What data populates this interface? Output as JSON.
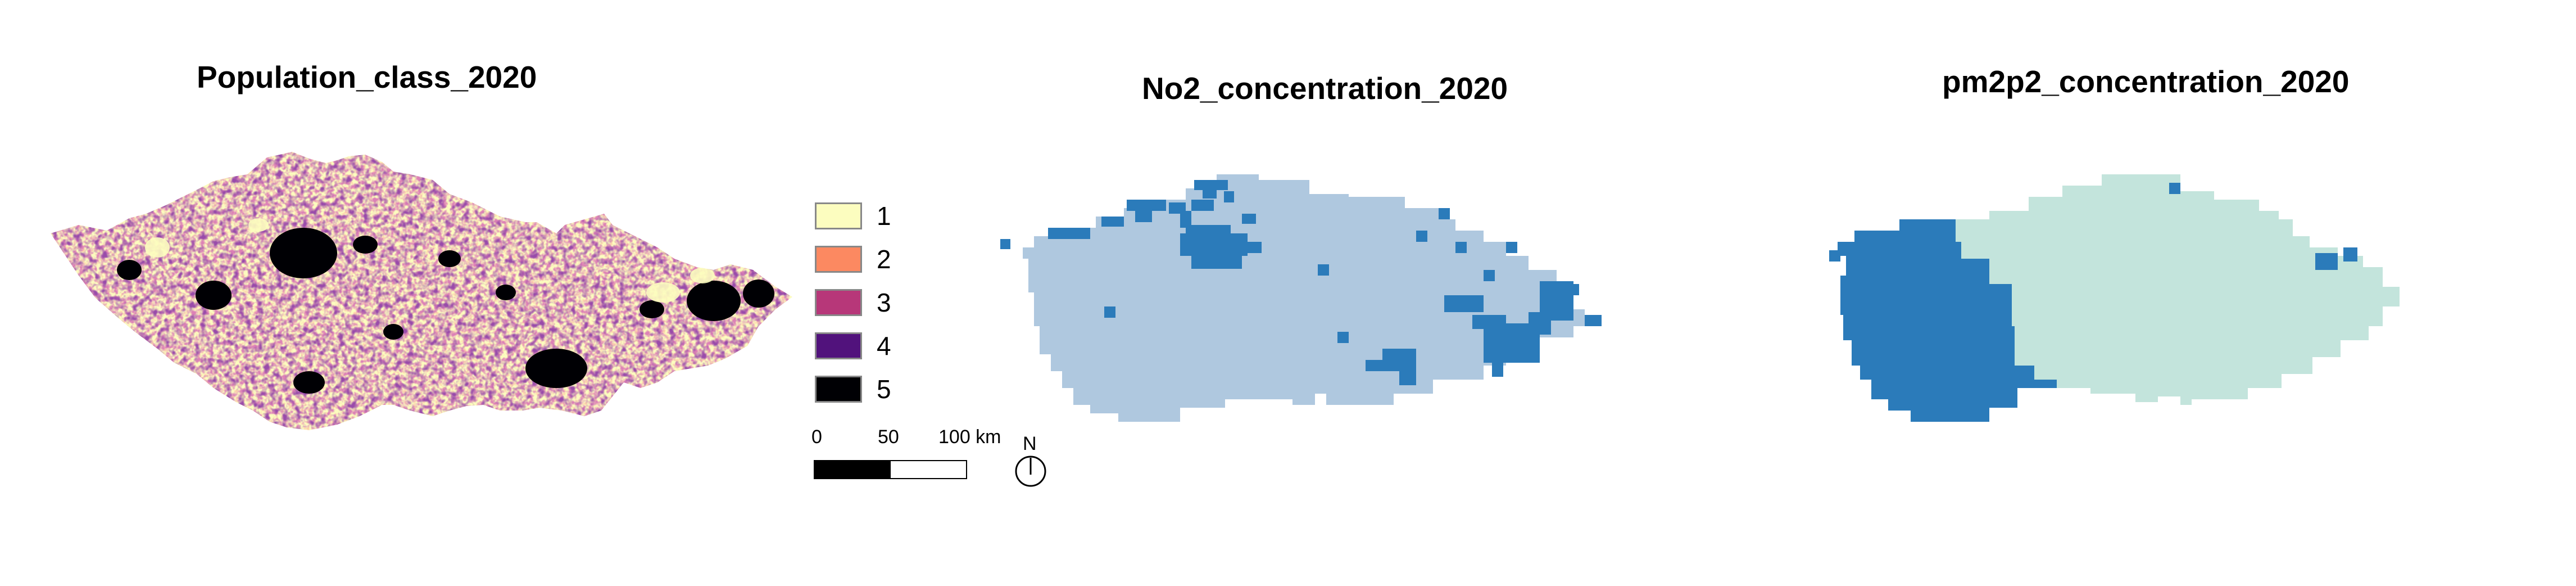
{
  "maps": {
    "population": {
      "title": "Population_class_2020",
      "legend": [
        {
          "label": "1",
          "color": "#fcfdbf"
        },
        {
          "label": "2",
          "color": "#fc8961"
        },
        {
          "label": "3",
          "color": "#b73779"
        },
        {
          "label": "4",
          "color": "#51127c"
        },
        {
          "label": "5",
          "color": "#000004"
        }
      ]
    },
    "no2": {
      "title": "No2_concentration_2020",
      "colors": {
        "low": "#afc8df",
        "high": "#2b7bba"
      }
    },
    "pm2p5": {
      "title": "pm2p2_concentration_2020",
      "colors": {
        "low": "#c3e4dc",
        "high": "#2b7bba"
      }
    }
  },
  "scalebar": {
    "label_0": "0",
    "label_50": "50",
    "label_100": "100 km"
  },
  "north_arrow": {
    "label": "N"
  }
}
